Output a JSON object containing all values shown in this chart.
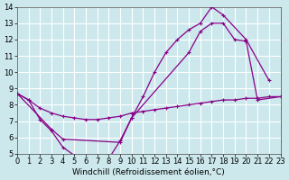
{
  "background_color": "#cce8ec",
  "grid_color": "#ffffff",
  "line_color": "#880088",
  "xlim": [
    0,
    23
  ],
  "ylim": [
    5,
    14
  ],
  "xticks": [
    0,
    1,
    2,
    3,
    4,
    5,
    6,
    7,
    8,
    9,
    10,
    11,
    12,
    13,
    14,
    15,
    16,
    17,
    18,
    19,
    20,
    21,
    22,
    23
  ],
  "yticks": [
    5,
    6,
    7,
    8,
    9,
    10,
    11,
    12,
    13,
    14
  ],
  "xlabel": "Windchill (Refroidissement éolien,°C)",
  "xlabel_fontsize": 6.5,
  "tick_fontsize": 6,
  "linewidth": 0.9,
  "markersize": 3.5,
  "mew": 0.8,
  "line_a_x": [
    0,
    1,
    2,
    3,
    4,
    5,
    6,
    7,
    8,
    9,
    10,
    11,
    12,
    13,
    14,
    15,
    16,
    17,
    18,
    20,
    22
  ],
  "line_a_y": [
    8.7,
    8.3,
    7.1,
    6.4,
    5.4,
    4.9,
    4.8,
    4.7,
    4.7,
    5.8,
    7.2,
    8.5,
    10.0,
    11.2,
    12.0,
    12.6,
    13.0,
    14.0,
    13.5,
    12.0,
    9.5
  ],
  "line_b_x": [
    0,
    3,
    4,
    9,
    10,
    15,
    16,
    17,
    18,
    19,
    20,
    21,
    23
  ],
  "line_b_y": [
    8.7,
    6.5,
    5.9,
    5.7,
    7.2,
    11.2,
    12.5,
    13.0,
    13.0,
    12.0,
    11.9,
    8.3,
    8.5
  ],
  "line_c_x": [
    0,
    1,
    2,
    3,
    4,
    5,
    6,
    7,
    8,
    9,
    10,
    11,
    12,
    13,
    14,
    15,
    16,
    17,
    18,
    19,
    20,
    21,
    22,
    23
  ],
  "line_c_y": [
    8.7,
    8.3,
    7.8,
    7.5,
    7.3,
    7.2,
    7.1,
    7.1,
    7.2,
    7.3,
    7.5,
    7.6,
    7.7,
    7.8,
    7.9,
    8.0,
    8.1,
    8.2,
    8.3,
    8.3,
    8.4,
    8.4,
    8.5,
    8.5
  ]
}
